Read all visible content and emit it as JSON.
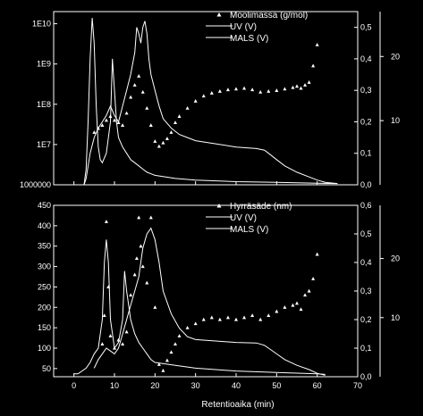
{
  "chart_data": [
    {
      "type": "line",
      "title": "",
      "xlabel": "",
      "xlim": [
        -5,
        70
      ],
      "left_axis": {
        "scale": "log",
        "ylim": [
          1000000,
          20000000000
        ],
        "ticks": [
          1000000,
          10000000,
          100000000,
          1000000000,
          10000000000
        ],
        "tick_labels": [
          "1000000",
          "1E7",
          "1E8",
          "1E9",
          "1E10"
        ]
      },
      "right_axis_inner": {
        "ylim": [
          0,
          0.55
        ],
        "ticks": [
          0.0,
          0.1,
          0.2,
          0.3,
          0.4,
          0.5
        ],
        "tick_labels": [
          "0,0",
          "0,1",
          "0,2",
          "0,3",
          "0,4",
          "0,5"
        ]
      },
      "right_axis_outer": {
        "ylim": [
          0,
          27
        ],
        "ticks": [
          10,
          20
        ],
        "tick_labels": [
          "10",
          "20"
        ]
      },
      "legend": {
        "placement": "top-right",
        "entries": [
          "Moolimassa (g/mol)",
          "UV (V)",
          "MALS (V)"
        ]
      },
      "series": [
        {
          "name": "Moolimassa (g/mol)",
          "kind": "scatter",
          "axis": "left",
          "x": [
            5,
            6,
            7,
            8,
            9,
            10,
            11,
            12,
            13,
            14,
            15,
            16,
            17,
            18,
            19,
            20,
            21,
            22,
            23,
            24,
            25,
            26,
            28,
            30,
            32,
            34,
            36,
            38,
            40,
            42,
            44,
            46,
            48,
            50,
            52,
            54,
            55,
            56,
            57,
            58,
            59,
            60
          ],
          "y": [
            20000000,
            25000000,
            30000000,
            40000000,
            50000000,
            40000000,
            35000000,
            30000000,
            60000000,
            150000000,
            300000000,
            500000000,
            200000000,
            80000000,
            30000000,
            12000000,
            9000000,
            11000000,
            14000000,
            20000000,
            35000000,
            50000000,
            80000000,
            120000000,
            160000000,
            190000000,
            210000000,
            230000000,
            240000000,
            250000000,
            230000000,
            200000000,
            210000000,
            220000000,
            240000000,
            260000000,
            280000000,
            250000000,
            300000000,
            350000000,
            900000000,
            3000000000
          ]
        },
        {
          "name": "UV (V)",
          "kind": "line",
          "axis": "right_inner",
          "x": [
            2.5,
            3,
            3.5,
            4,
            4.5,
            5,
            5.5,
            6,
            6.5,
            7,
            8,
            9,
            9.5,
            10,
            10.5,
            11,
            12,
            13,
            14,
            15,
            16,
            17,
            18,
            19,
            20,
            25,
            30,
            40,
            50,
            60,
            65
          ],
          "y": [
            0.0,
            0.05,
            0.2,
            0.4,
            0.53,
            0.45,
            0.25,
            0.12,
            0.08,
            0.07,
            0.1,
            0.2,
            0.4,
            0.3,
            0.2,
            0.15,
            0.12,
            0.1,
            0.08,
            0.07,
            0.06,
            0.05,
            0.04,
            0.035,
            0.03,
            0.02,
            0.015,
            0.01,
            0.008,
            0.005,
            0.004
          ]
        },
        {
          "name": "MALS (V)",
          "kind": "line",
          "axis": "right_inner",
          "x": [
            2.5,
            3,
            4,
            5,
            6,
            7,
            8,
            9,
            10,
            11,
            12,
            13,
            14,
            15,
            15.5,
            16,
            16.5,
            17,
            17.5,
            18,
            18.5,
            19,
            20,
            21,
            22,
            24,
            26,
            28,
            30,
            35,
            40,
            45,
            47,
            48,
            50,
            52,
            55,
            58,
            60,
            62,
            65
          ],
          "y": [
            0.0,
            0.02,
            0.1,
            0.15,
            0.18,
            0.2,
            0.22,
            0.25,
            0.22,
            0.2,
            0.25,
            0.3,
            0.35,
            0.42,
            0.5,
            0.48,
            0.45,
            0.5,
            0.52,
            0.48,
            0.4,
            0.35,
            0.3,
            0.25,
            0.21,
            0.18,
            0.16,
            0.15,
            0.14,
            0.13,
            0.12,
            0.115,
            0.11,
            0.1,
            0.08,
            0.06,
            0.04,
            0.025,
            0.015,
            0.008,
            0.004
          ]
        }
      ]
    },
    {
      "type": "line",
      "title": "",
      "xlabel": "Retentioaika (min)",
      "xlim": [
        -5,
        70
      ],
      "x_ticks": [
        0,
        10,
        20,
        30,
        40,
        50,
        60,
        70
      ],
      "x_tick_labels": [
        "0",
        "10",
        "20",
        "30",
        "40",
        "50",
        "60",
        "70"
      ],
      "left_axis": {
        "scale": "linear",
        "ylim": [
          30,
          450
        ],
        "ticks": [
          50,
          100,
          150,
          200,
          250,
          300,
          350,
          400,
          450
        ],
        "tick_labels": [
          "50",
          "100",
          "150",
          "200",
          "250",
          "300",
          "350",
          "400",
          "450"
        ]
      },
      "right_axis_inner": {
        "ylim": [
          0,
          0.6
        ],
        "ticks": [
          0.0,
          0.1,
          0.2,
          0.3,
          0.4,
          0.5,
          0.6
        ],
        "tick_labels": [
          "0,0",
          "0,1",
          "0,2",
          "0,3",
          "0,4",
          "0,5",
          "0,6"
        ]
      },
      "right_axis_outer": {
        "ylim": [
          0,
          29
        ],
        "ticks": [
          10,
          20
        ],
        "tick_labels": [
          "10",
          "20"
        ]
      },
      "legend": {
        "placement": "top-right",
        "entries": [
          "Hyrräsäde (nm)",
          "UV (V)",
          "MALS (V)"
        ]
      },
      "series": [
        {
          "name": "Hyrräsäde (nm)",
          "kind": "scatter",
          "axis": "left",
          "x": [
            7,
            7.5,
            8,
            8.5,
            9,
            10,
            11,
            12,
            13,
            14,
            15,
            15.5,
            16,
            16.5,
            17,
            18,
            19,
            20,
            21,
            22,
            23,
            24,
            25,
            26,
            28,
            30,
            32,
            34,
            36,
            38,
            40,
            42,
            44,
            46,
            48,
            50,
            52,
            54,
            55,
            56,
            57,
            58,
            59,
            60
          ],
          "y": [
            110,
            180,
            410,
            250,
            130,
            100,
            120,
            110,
            140,
            230,
            280,
            320,
            420,
            350,
            300,
            260,
            420,
            200,
            60,
            45,
            70,
            90,
            110,
            130,
            150,
            160,
            170,
            175,
            170,
            175,
            170,
            175,
            180,
            170,
            180,
            190,
            200,
            205,
            210,
            195,
            230,
            240,
            270,
            330
          ]
        },
        {
          "name": "UV (V)",
          "kind": "line",
          "axis": "right_inner",
          "x": [
            0,
            1,
            2,
            3,
            4,
            5,
            6,
            7,
            7.5,
            8,
            8.5,
            9,
            10,
            11,
            12,
            12.5,
            13,
            14,
            15,
            16,
            17,
            18,
            19,
            20,
            25,
            30,
            40,
            50,
            60,
            62
          ],
          "y": [
            0.01,
            0.01,
            0.02,
            0.03,
            0.05,
            0.08,
            0.1,
            0.2,
            0.4,
            0.48,
            0.4,
            0.2,
            0.1,
            0.12,
            0.2,
            0.37,
            0.3,
            0.2,
            0.15,
            0.12,
            0.1,
            0.08,
            0.06,
            0.05,
            0.04,
            0.03,
            0.02,
            0.015,
            0.01,
            0.008
          ]
        },
        {
          "name": "MALS (V)",
          "kind": "line",
          "axis": "right_inner",
          "x": [
            5,
            6,
            7,
            8,
            9,
            10,
            11,
            12,
            13,
            14,
            15,
            16,
            17,
            18,
            19,
            20,
            21,
            22,
            24,
            26,
            28,
            30,
            35,
            40,
            45,
            47,
            48,
            50,
            52,
            55,
            58,
            60,
            62
          ],
          "y": [
            0.03,
            0.06,
            0.08,
            0.1,
            0.09,
            0.08,
            0.1,
            0.15,
            0.2,
            0.25,
            0.3,
            0.35,
            0.45,
            0.5,
            0.52,
            0.48,
            0.4,
            0.3,
            0.22,
            0.17,
            0.14,
            0.13,
            0.125,
            0.12,
            0.118,
            0.11,
            0.1,
            0.08,
            0.06,
            0.04,
            0.025,
            0.012,
            0.005
          ]
        }
      ]
    }
  ]
}
